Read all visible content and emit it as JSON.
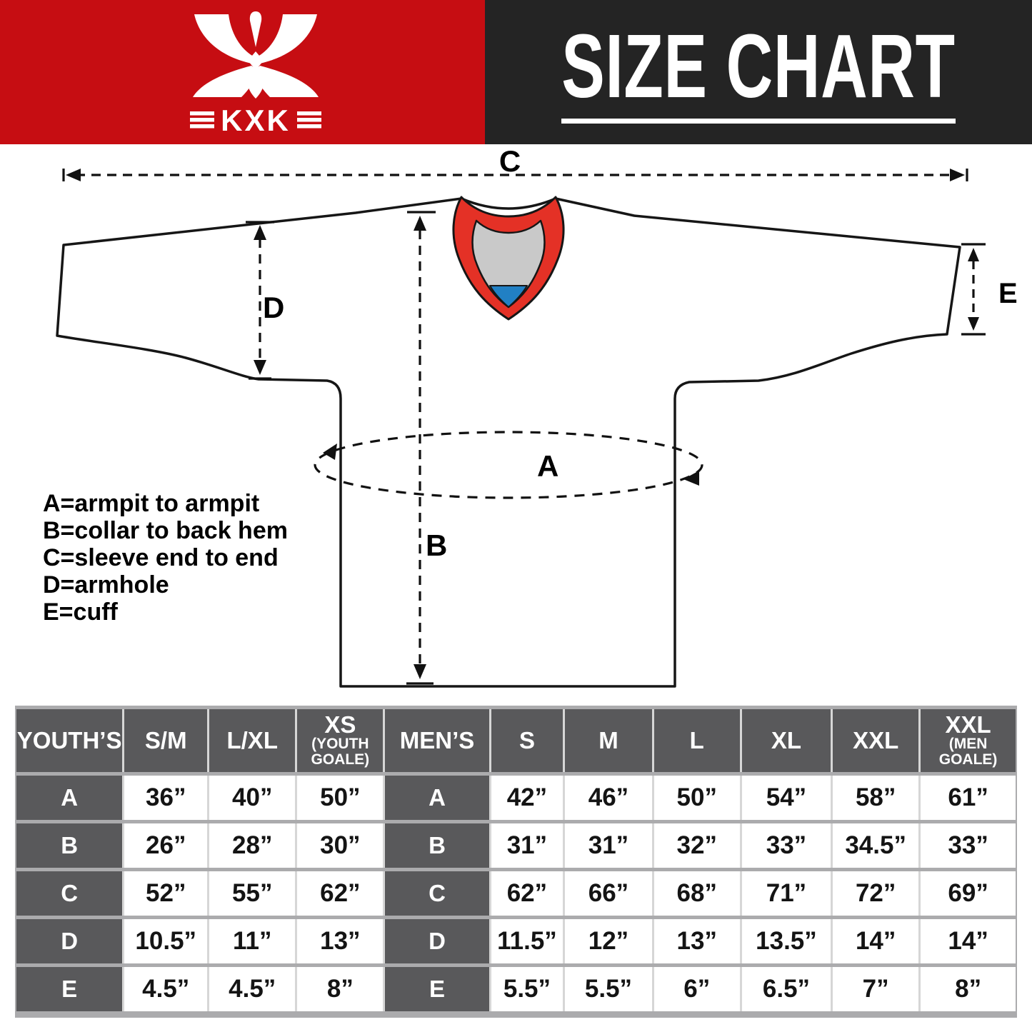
{
  "banner": {
    "brand": "KXK",
    "title": "SIZE CHART",
    "colors": {
      "red": "#c60d12",
      "dark": "#242424"
    }
  },
  "diagram": {
    "dim_labels": {
      "a": "A",
      "b": "B",
      "c": "C",
      "d": "D",
      "e": "E"
    },
    "legend": [
      "A=armpit to armpit",
      "B=collar to back hem",
      "C=sleeve end to end",
      "D=armhole",
      "E=cuff"
    ],
    "colors": {
      "collar_red": "#e43126",
      "collar_gray": "#c9c9c9",
      "collar_blue": "#2180c4",
      "outline": "#161616"
    }
  },
  "size_table": {
    "youth": {
      "label": "YOUTH’S",
      "columns": [
        {
          "size": "S/M",
          "note": ""
        },
        {
          "size": "L/XL",
          "note": ""
        },
        {
          "size": "XS",
          "note": "(YOUTH GOALE)"
        }
      ],
      "rows": [
        {
          "label": "A",
          "values": [
            "36”",
            "40”",
            "50”"
          ]
        },
        {
          "label": "B",
          "values": [
            "26”",
            "28”",
            "30”"
          ]
        },
        {
          "label": "C",
          "values": [
            "52”",
            "55”",
            "62”"
          ]
        },
        {
          "label": "D",
          "values": [
            "10.5”",
            "11”",
            "13”"
          ]
        },
        {
          "label": "E",
          "values": [
            "4.5”",
            "4.5”",
            "8”"
          ]
        }
      ]
    },
    "men": {
      "label": "MEN’S",
      "columns": [
        {
          "size": "S",
          "note": ""
        },
        {
          "size": "M",
          "note": ""
        },
        {
          "size": "L",
          "note": ""
        },
        {
          "size": "XL",
          "note": ""
        },
        {
          "size": "XXL",
          "note": ""
        },
        {
          "size": "XXL",
          "note": "(MEN GOALE)"
        }
      ],
      "rows": [
        {
          "label": "A",
          "values": [
            "42”",
            "46”",
            "50”",
            "54”",
            "58”",
            "61”"
          ]
        },
        {
          "label": "B",
          "values": [
            "31”",
            "31”",
            "32”",
            "33”",
            "34.5”",
            "33”"
          ]
        },
        {
          "label": "C",
          "values": [
            "62”",
            "66”",
            "68”",
            "71”",
            "72”",
            "69”"
          ]
        },
        {
          "label": "D",
          "values": [
            "11.5”",
            "12”",
            "13”",
            "13.5”",
            "14”",
            "14”"
          ]
        },
        {
          "label": "E",
          "values": [
            "5.5”",
            "5.5”",
            "6”",
            "6.5”",
            "7”",
            "8”"
          ]
        }
      ]
    }
  }
}
